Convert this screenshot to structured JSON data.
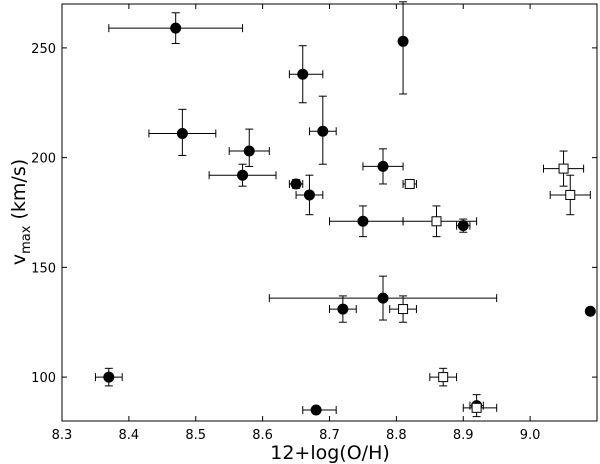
{
  "chart_data": {
    "type": "scatter",
    "xlabel": "12+log(O/H)",
    "ylabel": {
      "main": "v",
      "sub": "max",
      "unit": " (km/s)"
    },
    "xlim": [
      8.3,
      9.1
    ],
    "ylim": [
      80,
      270
    ],
    "x_ticks": [
      8.3,
      8.4,
      8.5,
      8.6,
      8.7,
      8.8,
      8.9,
      9.0
    ],
    "x_tick_labels": [
      "8.3",
      "8.4",
      "8.5",
      "8.6",
      "8.7",
      "8.8",
      "8.9",
      "9.0"
    ],
    "y_ticks": [
      100,
      150,
      200,
      250
    ],
    "y_tick_labels": [
      "100",
      "150",
      "200",
      "250"
    ],
    "grid": false,
    "series": [
      {
        "marker": "filled-circle",
        "color": "#000000",
        "points": [
          {
            "x": 8.47,
            "y": 259,
            "xerr": [
              0.1,
              0.1
            ],
            "yerr": [
              7,
              7
            ]
          },
          {
            "x": 8.48,
            "y": 211,
            "xerr": [
              0.05,
              0.05
            ],
            "yerr": [
              10,
              11
            ]
          },
          {
            "x": 8.58,
            "y": 203,
            "xerr": [
              0.03,
              0.03
            ],
            "yerr": [
              7,
              10
            ]
          },
          {
            "x": 8.57,
            "y": 192,
            "xerr": [
              0.05,
              0.05
            ],
            "yerr": [
              5,
              5
            ]
          },
          {
            "x": 8.37,
            "y": 100,
            "xerr": [
              0.02,
              0.02
            ],
            "yerr": [
              4,
              4
            ]
          },
          {
            "x": 8.66,
            "y": 238,
            "xerr": [
              0.02,
              0.03
            ],
            "yerr": [
              13,
              13
            ]
          },
          {
            "x": 8.69,
            "y": 212,
            "xerr": [
              0.02,
              0.02
            ],
            "yerr": [
              15,
              16
            ]
          },
          {
            "x": 8.65,
            "y": 188,
            "xerr": [
              0.01,
              0.01
            ],
            "yerr": [
              2,
              2
            ]
          },
          {
            "x": 8.67,
            "y": 183,
            "xerr": [
              0.02,
              0.02
            ],
            "yerr": [
              9,
              9
            ]
          },
          {
            "x": 8.81,
            "y": 253,
            "xerr": [
              0.0,
              0.0
            ],
            "yerr": [
              24,
              18
            ]
          },
          {
            "x": 8.78,
            "y": 196,
            "xerr": [
              0.03,
              0.03
            ],
            "yerr": [
              8,
              8
            ]
          },
          {
            "x": 8.75,
            "y": 171,
            "xerr": [
              0.05,
              0.06
            ],
            "yerr": [
              7,
              7
            ]
          },
          {
            "x": 8.72,
            "y": 131,
            "xerr": [
              0.02,
              0.02
            ],
            "yerr": [
              6,
              6
            ]
          },
          {
            "x": 8.78,
            "y": 136,
            "xerr": [
              0.17,
              0.17
            ],
            "yerr": [
              10,
              10
            ]
          },
          {
            "x": 8.68,
            "y": 85,
            "xerr": [
              0.02,
              0.03
            ],
            "yerr": [
              1,
              1
            ]
          },
          {
            "x": 8.9,
            "y": 169,
            "xerr": [
              0.01,
              0.01
            ],
            "yerr": [
              3,
              3
            ]
          },
          {
            "x": 8.92,
            "y": 87,
            "xerr": [
              0.01,
              0.01
            ],
            "yerr": [
              5,
              5
            ]
          },
          {
            "x": 9.09,
            "y": 130,
            "xerr": [
              0.0,
              0.0
            ],
            "yerr": [
              1,
              1
            ]
          }
        ]
      },
      {
        "marker": "open-square",
        "color": "#000000",
        "points": [
          {
            "x": 8.82,
            "y": 188,
            "xerr": [
              0.01,
              0.01
            ],
            "yerr": [
              2,
              2
            ]
          },
          {
            "x": 8.86,
            "y": 171,
            "xerr": [
              0.05,
              0.06
            ],
            "yerr": [
              7,
              7
            ]
          },
          {
            "x": 8.81,
            "y": 131,
            "xerr": [
              0.02,
              0.02
            ],
            "yerr": [
              6,
              6
            ]
          },
          {
            "x": 8.87,
            "y": 100,
            "xerr": [
              0.02,
              0.02
            ],
            "yerr": [
              4,
              4
            ]
          },
          {
            "x": 8.92,
            "y": 86,
            "xerr": [
              0.02,
              0.03
            ],
            "yerr": [
              1,
              1
            ]
          },
          {
            "x": 9.05,
            "y": 195,
            "xerr": [
              0.03,
              0.03
            ],
            "yerr": [
              8,
              8
            ]
          },
          {
            "x": 9.06,
            "y": 183,
            "xerr": [
              0.03,
              0.03
            ],
            "yerr": [
              9,
              9
            ]
          }
        ]
      }
    ]
  }
}
